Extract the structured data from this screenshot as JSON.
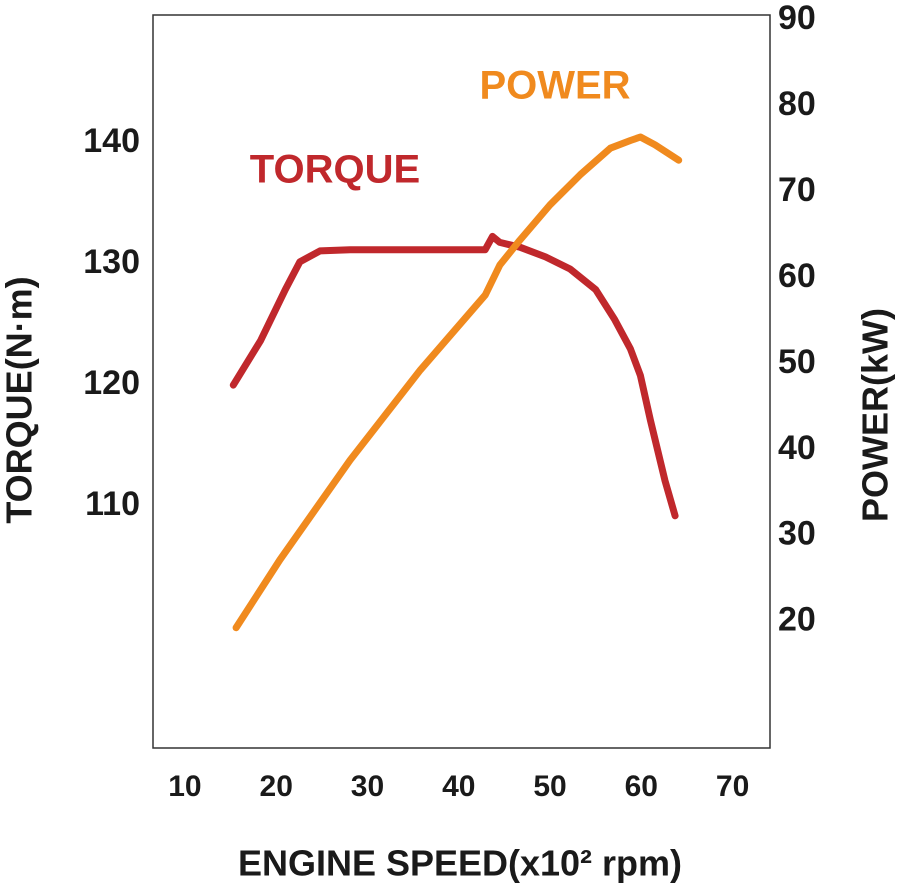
{
  "chart_data": {
    "type": "line",
    "xlabel": "ENGINE SPEED(x10² rpm)",
    "ylabel": "TORQUE(N·m)",
    "y2label": "POWER(kW)",
    "xlim": [
      6.5,
      74.1
    ],
    "xticks": [
      10,
      20,
      30,
      40,
      50,
      60,
      70
    ],
    "ylim": [
      90,
      150.6
    ],
    "yticks": [
      110,
      120,
      130,
      140
    ],
    "y2lim": [
      5.3,
      90.6
    ],
    "y2ticks": [
      20,
      30,
      40,
      50,
      60,
      70,
      80,
      90
    ],
    "series": [
      {
        "name": "TORQUE",
        "color": "#c0282c",
        "x": [
          15.3,
          18.3,
          21,
          22.6,
          24.8,
          28.1,
          33.6,
          42.9,
          43.7,
          44.5,
          46.7,
          49.5,
          52.2,
          55,
          57.1,
          58.8,
          59.9,
          61,
          62.6,
          63.7
        ],
        "values": [
          120,
          123.7,
          127.9,
          130.2,
          131.1,
          131.2,
          131.2,
          131.2,
          132.3,
          131.8,
          131.4,
          130.6,
          129.6,
          127.9,
          125.4,
          123,
          120.8,
          117.1,
          112.1,
          109.2
        ]
      },
      {
        "name": "POWER",
        "color": "#f08a1e",
        "axis": "y2",
        "x": [
          15.6,
          20.4,
          28.1,
          35.8,
          42.9,
          44.5,
          46.7,
          50,
          53.3,
          56.6,
          58.8,
          59.9,
          61.5,
          64.1
        ],
        "values": [
          19.3,
          27.2,
          38.8,
          49.3,
          58,
          61.5,
          64.4,
          68.5,
          72,
          75.1,
          76,
          76.4,
          75.5,
          73.7
        ]
      }
    ]
  }
}
